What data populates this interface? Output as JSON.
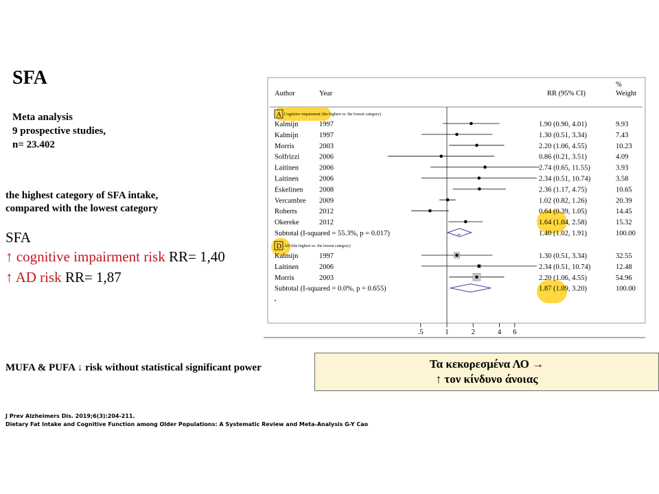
{
  "slide": {
    "title": "SFA",
    "meta": [
      "Meta analysis",
      "9 prospective studies,",
      "n= 23.402"
    ],
    "finding_lines": [
      "the highest category of SFA intake,",
      "compared with the lowest category"
    ],
    "result_heading": "SFA",
    "results": [
      {
        "arrow": "↑",
        "label": "cognitive  impairment risk",
        "value": " RR= 1,40"
      },
      {
        "arrow": "↑",
        "label": "AD risk",
        "value": " RR= 1,87"
      }
    ],
    "mufa_note": "MUFA & PUFA ↓ risk without statistical significant power",
    "summary_box": [
      "Τα κεκορεσμένα ΛΟ →",
      "↑ τον κίνδυνο άνοιας"
    ],
    "references": [
      "J Prev Alzheimers Dis. 2019;6(3):204-211.",
      "Dietary Fat Intake and Cognitive Function among Older Populations: A Systematic Review and Meta-Analysis    G-Y Cao"
    ]
  },
  "chart_data": {
    "type": "forest",
    "columns": {
      "author": "Author",
      "year": "Year",
      "rr": "RR (95% CI)",
      "weight_line1": "%",
      "weight_line2": "Weight"
    },
    "xticks": [
      ".5",
      "1",
      "2",
      "4",
      "6"
    ],
    "xtick_values": [
      0.5,
      1,
      2,
      4,
      6
    ],
    "scale": "log",
    "null_value": 1,
    "highlight_color": "#ffd42a",
    "groups": [
      {
        "letter": "A",
        "label": "Cognitive impairment (the highest vs. the lowest category)",
        "studies": [
          {
            "author": "Kalmijn",
            "year": "1997",
            "rr": 1.9,
            "lo": 0.9,
            "hi": 4.01,
            "ci_text": "1.90 (0.90, 4.01)",
            "weight": "9.93"
          },
          {
            "author": "Kalmijn",
            "year": "1997",
            "rr": 1.3,
            "lo": 0.51,
            "hi": 3.34,
            "ci_text": "1.30 (0.51, 3.34)",
            "weight": "7.43"
          },
          {
            "author": "Morris",
            "year": "2003",
            "rr": 2.2,
            "lo": 1.06,
            "hi": 4.55,
            "ci_text": "2.20 (1.06, 4.55)",
            "weight": "10.23"
          },
          {
            "author": "Solfrizzi",
            "year": "2006",
            "rr": 0.86,
            "lo": 0.21,
            "hi": 3.51,
            "ci_text": "0.86 (0.21, 3.51)",
            "weight": "4.09"
          },
          {
            "author": "Laitinen",
            "year": "2006",
            "rr": 2.74,
            "lo": 0.65,
            "hi": 11.55,
            "ci_text": "2.74 (0.65, 11.55)",
            "weight": "3.93"
          },
          {
            "author": "Laitinen",
            "year": "2006",
            "rr": 2.34,
            "lo": 0.51,
            "hi": 10.74,
            "ci_text": "2.34 (0.51, 10.74)",
            "weight": "3.58"
          },
          {
            "author": "Eskelinen",
            "year": "2008",
            "rr": 2.36,
            "lo": 1.17,
            "hi": 4.75,
            "ci_text": "2.36 (1.17, 4.75)",
            "weight": "10.65"
          },
          {
            "author": "Vercambre",
            "year": "2009",
            "rr": 1.02,
            "lo": 0.82,
            "hi": 1.26,
            "ci_text": "1.02 (0.82, 1.26)",
            "weight": "20.39"
          },
          {
            "author": "Roberts",
            "year": "2012",
            "rr": 0.64,
            "lo": 0.39,
            "hi": 1.05,
            "ci_text": "0.64 (0.39, 1.05)",
            "weight": "14.45"
          },
          {
            "author": "Okereke",
            "year": "2012",
            "rr": 1.64,
            "lo": 1.04,
            "hi": 2.58,
            "ci_text": "1.64 (1.04, 2.58)",
            "weight": "15.32"
          }
        ],
        "subtotal": {
          "label": "Subtotal  (I-squared = 55.3%, p = 0.017)",
          "rr": 1.4,
          "lo": 1.02,
          "hi": 1.91,
          "ci_text": "1.40 (1.02, 1.91)",
          "weight": "100.00"
        }
      },
      {
        "letter": "D",
        "label": "AD (the highest vs. the lowest category)",
        "studies": [
          {
            "author": "Kalmijn",
            "year": "1997",
            "rr": 1.3,
            "lo": 0.51,
            "hi": 3.34,
            "ci_text": "1.30 (0.51, 3.34)",
            "weight": "32.55"
          },
          {
            "author": "Laitinen",
            "year": "2006",
            "rr": 2.34,
            "lo": 0.51,
            "hi": 10.74,
            "ci_text": "2.34 (0.51, 10.74)",
            "weight": "12.48"
          },
          {
            "author": "Morris",
            "year": "2003",
            "rr": 2.2,
            "lo": 1.06,
            "hi": 4.55,
            "ci_text": "2.20 (1.06, 4.55)",
            "weight": "54.96"
          }
        ],
        "subtotal": {
          "label": "Subtotal  (I-squared = 0.0%, p = 0.655)",
          "rr": 1.87,
          "lo": 1.09,
          "hi": 3.2,
          "ci_text": "1.87 (1.09, 3.20)",
          "weight": "100.00"
        }
      }
    ]
  }
}
